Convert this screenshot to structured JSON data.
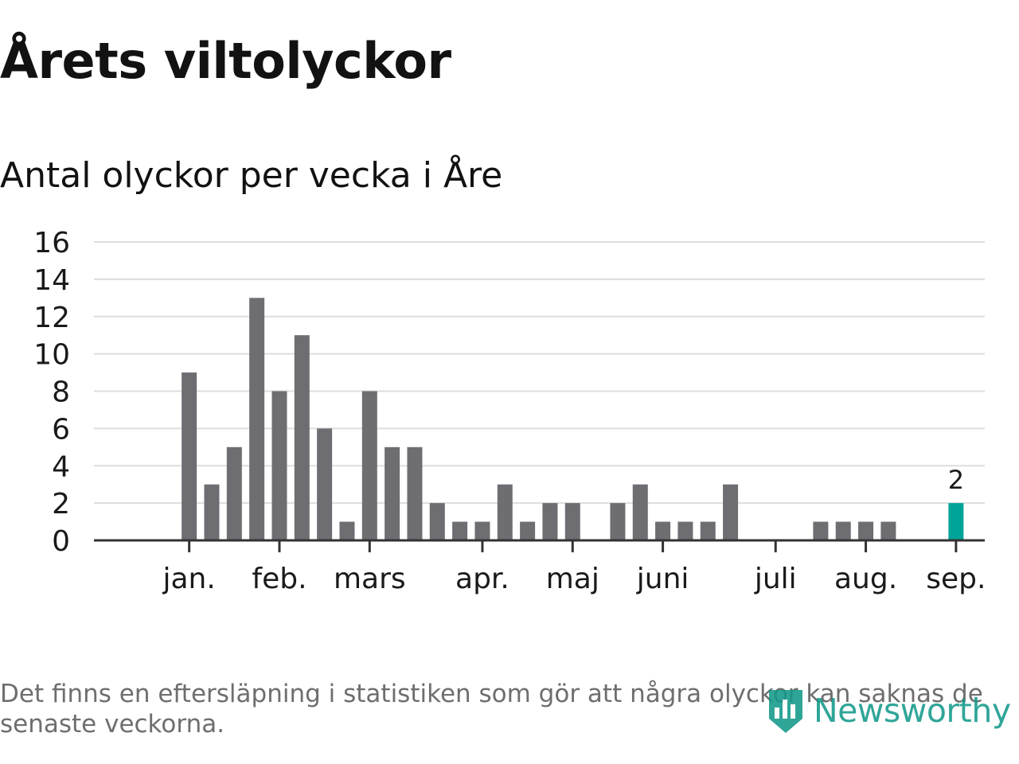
{
  "title": "Årets viltolyckor",
  "subtitle": "Antal olyckor per vecka i Åre",
  "footnote": "Det finns en eftersläpning i statistiken som gör att några olyckor kan saknas de senaste veckorna.",
  "brand": {
    "name": "Newsworthy",
    "icon": "bar-chart-shield-icon",
    "color": "#13998a"
  },
  "colors": {
    "bar": "#6e6d72",
    "highlight": "#00a499",
    "grid": "#dddddd",
    "axis": "#333333",
    "text": "#1a1a1a"
  },
  "chart_data": {
    "type": "bar",
    "xlabel": "",
    "ylabel": "",
    "ylim": [
      0,
      16
    ],
    "yticks": [
      "0",
      "2",
      "4",
      "6",
      "8",
      "10",
      "12",
      "14",
      "16"
    ],
    "grid": true,
    "week_count": 37,
    "values": [
      0,
      0,
      9,
      3,
      5,
      13,
      8,
      11,
      6,
      1,
      8,
      5,
      5,
      2,
      1,
      1,
      3,
      1,
      2,
      2,
      0,
      2,
      3,
      1,
      1,
      1,
      3,
      0,
      0,
      0,
      1,
      1,
      1,
      1,
      0,
      0,
      2
    ],
    "highlight_index": 36,
    "highlight_label": "2",
    "months": [
      {
        "label": "jan.",
        "week": 2
      },
      {
        "label": "feb.",
        "week": 6
      },
      {
        "label": "mars",
        "week": 10
      },
      {
        "label": "apr.",
        "week": 15
      },
      {
        "label": "maj",
        "week": 19
      },
      {
        "label": "juni",
        "week": 23
      },
      {
        "label": "juli",
        "week": 28
      },
      {
        "label": "aug.",
        "week": 32
      },
      {
        "label": "sep.",
        "week": 36
      }
    ]
  }
}
